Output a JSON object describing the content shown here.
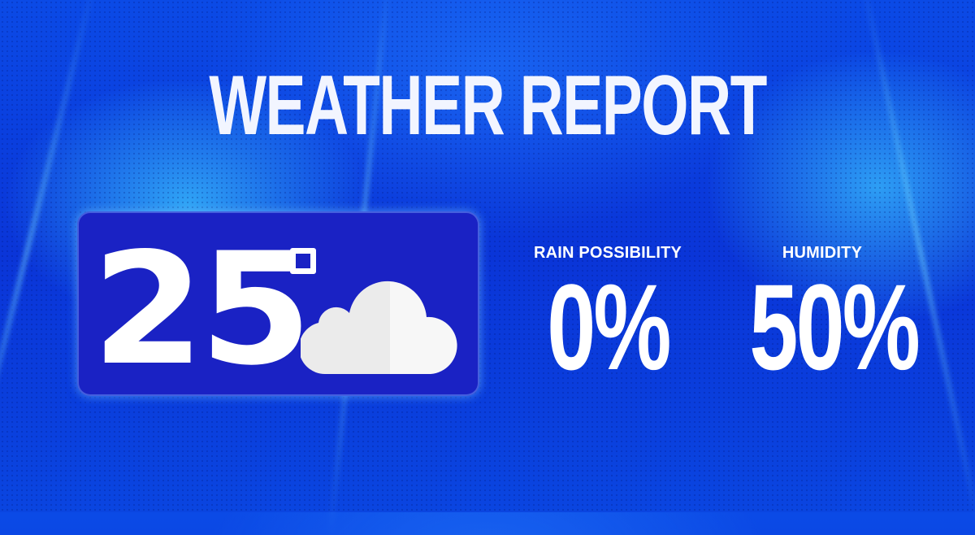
{
  "title": "WEATHER REPORT",
  "temperature": {
    "value": "25",
    "unit_icon": "degree-icon",
    "condition_icon": "cloud-icon"
  },
  "stats": [
    {
      "label": "RAIN POSSIBILITY",
      "value": "0%"
    },
    {
      "label": "HUMIDITY",
      "value": "50%"
    }
  ],
  "colors": {
    "background": "#0a3ee0",
    "panel": "#1a22c4",
    "text": "#ffffff"
  }
}
